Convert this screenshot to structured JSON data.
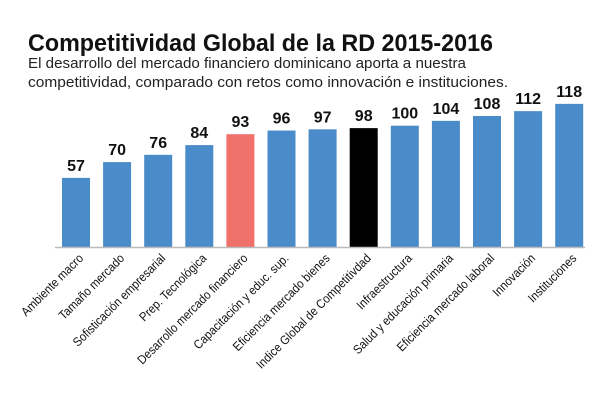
{
  "chart_data": {
    "type": "bar",
    "title": "Competitividad Global de la RD 2015-2016",
    "subtitle": [
      "El desarrollo del mercado financiero dominicano aporta a nuestra",
      "competitividad, comparado con retos como innovación e instituciones."
    ],
    "xlabel": "",
    "ylabel": "",
    "ylim": [
      0,
      120
    ],
    "grid": false,
    "categories": [
      "Ambiente macro",
      "Tamaño mercado",
      "Sofisticación empresarial",
      "Prep. Tecnológica",
      "Desarrollo mercado financiero",
      "Capacitación y educ. sup.",
      "Eficiencia mercado bienes",
      "Indice Global de Competitivdad",
      "Infraestructura",
      "Salud y educación primaria",
      "Eficiencia mercado laboral",
      "Innovación",
      "Instituciones"
    ],
    "values": [
      57,
      70,
      76,
      84,
      93,
      96,
      97,
      98,
      100,
      104,
      108,
      112,
      118
    ],
    "colors": {
      "default": "#4a8bc9",
      "highlight": "#f0706a",
      "overall": "#000000",
      "axis": "#bbbbbb"
    },
    "highlight_index": 4,
    "overall_index": 7
  }
}
